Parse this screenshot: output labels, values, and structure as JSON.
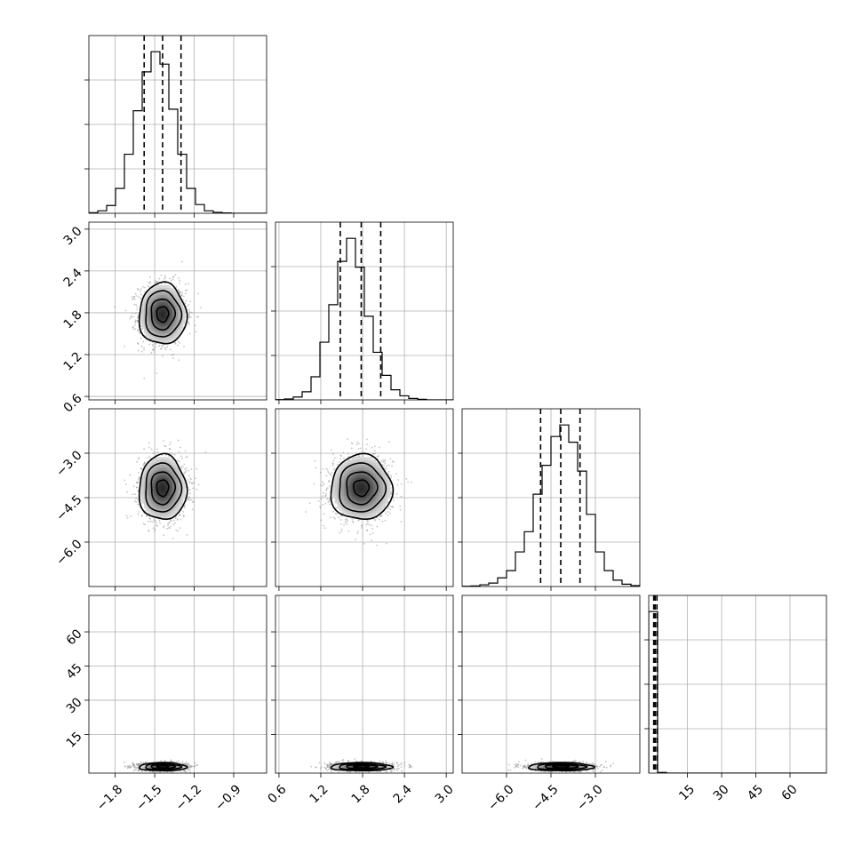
{
  "chart_data": {
    "type": "corner",
    "grid": true,
    "colors": {
      "hist": "#000000",
      "contour": "#000000",
      "points": "#7f7f7f",
      "quantile": "#000000"
    },
    "parameters": [
      {
        "index": 0,
        "range": [
          -2.0,
          -0.65
        ],
        "ticks": [
          -1.8,
          -1.5,
          -1.2,
          -0.9
        ],
        "tick_labels": [
          "−1.8",
          "−1.5",
          "−1.2",
          "−0.9"
        ]
      },
      {
        "index": 1,
        "range": [
          0.55,
          3.1
        ],
        "ticks": [
          0.6,
          1.2,
          1.8,
          2.4,
          3.0
        ],
        "tick_labels": [
          "0.6",
          "1.2",
          "1.8",
          "2.4",
          "3.0"
        ]
      },
      {
        "index": 2,
        "range": [
          -7.5,
          -1.5
        ],
        "ticks": [
          -6.0,
          -4.5,
          -3.0
        ],
        "tick_labels": [
          "−6.0",
          "−4.5",
          "−3.0"
        ]
      },
      {
        "index": 3,
        "range": [
          -2,
          76
        ],
        "ticks": [
          15,
          30,
          45,
          60
        ],
        "tick_labels": [
          "15",
          "30",
          "45",
          "60"
        ]
      }
    ],
    "histograms": [
      {
        "param": 0,
        "bin_edges": [
          -2.0,
          -1.9325,
          -1.865,
          -1.7975,
          -1.73,
          -1.6625,
          -1.595,
          -1.5275,
          -1.46,
          -1.3925,
          -1.325,
          -1.2575,
          -1.19,
          -1.1225,
          -1.055,
          -0.9875,
          -0.92,
          -0.8525,
          -0.785,
          -0.7175,
          -0.65
        ],
        "counts": [
          2,
          8,
          25,
          80,
          190,
          330,
          455,
          520,
          480,
          335,
          190,
          80,
          28,
          8,
          3,
          1,
          0,
          0,
          0,
          0
        ],
        "quantiles": [
          -1.58,
          -1.44,
          -1.3
        ]
      },
      {
        "param": 1,
        "bin_edges": [
          0.55,
          0.6775,
          0.805,
          0.9325,
          1.06,
          1.1875,
          1.315,
          1.4425,
          1.57,
          1.6975,
          1.825,
          1.9525,
          2.08,
          2.2075,
          2.335,
          2.4625,
          2.59,
          2.7175,
          2.845,
          2.9725,
          3.1
        ],
        "counts": [
          1,
          3,
          10,
          28,
          80,
          200,
          330,
          480,
          560,
          460,
          290,
          165,
          85,
          35,
          14,
          5,
          2,
          0,
          0,
          0
        ],
        "quantiles": [
          1.48,
          1.78,
          2.06
        ]
      },
      {
        "param": 2,
        "bin_edges": [
          -7.5,
          -7.2,
          -6.9,
          -6.6,
          -6.3,
          -6.0,
          -5.7,
          -5.4,
          -5.1,
          -4.8,
          -4.5,
          -4.2,
          -3.9,
          -3.6,
          -3.3,
          -3.0,
          -2.7,
          -2.4,
          -2.1,
          -1.8,
          -1.5
        ],
        "counts": [
          1,
          2,
          6,
          12,
          30,
          55,
          120,
          190,
          320,
          420,
          520,
          560,
          500,
          400,
          250,
          120,
          55,
          22,
          8,
          3
        ],
        "quantiles": [
          -4.85,
          -4.17,
          -3.52
        ]
      },
      {
        "param": 3,
        "bin_edges": [
          -2,
          1.9,
          5.8,
          9.7,
          13.6,
          17.5,
          21.4,
          25.3,
          29.2,
          33.1,
          37.0,
          40.9,
          44.8,
          48.7,
          52.6,
          56.5,
          60.4,
          64.3,
          68.2,
          72.1,
          76.0
        ],
        "counts": [
          10000,
          40,
          0,
          0,
          0,
          0,
          0,
          0,
          0,
          0,
          0,
          0,
          0,
          0,
          0,
          0,
          0,
          0,
          0,
          0
        ],
        "quantiles": [
          0.2,
          0.8,
          1.6
        ]
      }
    ],
    "joint_2d": [
      {
        "x_param": 0,
        "y_param": 1,
        "center": [
          -1.44,
          1.78
        ],
        "sigma": [
          0.09,
          0.22
        ]
      },
      {
        "x_param": 0,
        "y_param": 2,
        "center": [
          -1.44,
          -4.17
        ],
        "sigma": [
          0.09,
          0.55
        ]
      },
      {
        "x_param": 1,
        "y_param": 2,
        "center": [
          1.78,
          -4.17
        ],
        "sigma": [
          0.22,
          0.55
        ]
      },
      {
        "x_param": 0,
        "y_param": 3,
        "center": [
          -1.44,
          0.8
        ],
        "sigma": [
          0.09,
          0.9
        ]
      },
      {
        "x_param": 1,
        "y_param": 3,
        "center": [
          1.78,
          0.8
        ],
        "sigma": [
          0.22,
          0.9
        ]
      },
      {
        "x_param": 2,
        "y_param": 3,
        "center": [
          -4.17,
          0.8
        ],
        "sigma": [
          0.55,
          0.9
        ]
      }
    ]
  }
}
